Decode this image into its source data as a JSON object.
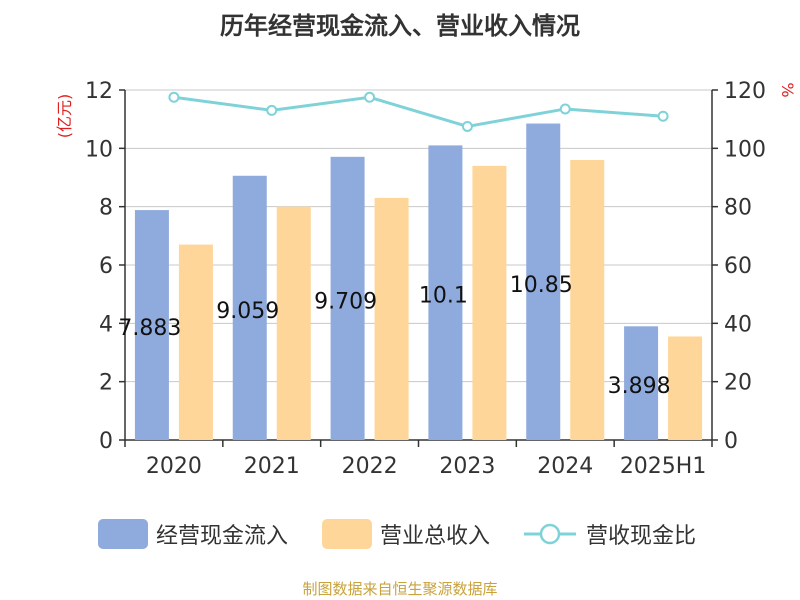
{
  "title": "历年经营现金流入、营业收入情况",
  "source": "制图数据来自恒生聚源数据库",
  "colors": {
    "cash": "#8faadc",
    "revenue": "#ffd699",
    "ratio": "#7fd3d8",
    "axis_unit": "#e02020",
    "text": "#333333",
    "grid": "#c8c8c8"
  },
  "chart_data": {
    "type": "bar",
    "categories": [
      "2020",
      "2021",
      "2022",
      "2023",
      "2024",
      "2025H1"
    ],
    "series": [
      {
        "name": "经营现金流入",
        "type": "bar",
        "axis": "left",
        "values": [
          7.883,
          9.059,
          9.709,
          10.1,
          10.85,
          3.898
        ],
        "labels": [
          "7.883",
          "9.059",
          "9.709",
          "10.1",
          "10.85",
          "3.898"
        ]
      },
      {
        "name": "营业总收入",
        "type": "bar",
        "axis": "left",
        "values": [
          6.7,
          8.0,
          8.3,
          9.4,
          9.6,
          3.55
        ]
      },
      {
        "name": "营收现金比",
        "type": "line",
        "axis": "right",
        "values": [
          117.5,
          113,
          117.5,
          107.5,
          113.5,
          111
        ]
      }
    ],
    "left_axis": {
      "label": "(亿元)",
      "ylim": [
        0,
        12
      ],
      "ticks": [
        "0",
        "2",
        "4",
        "6",
        "8",
        "10",
        "12"
      ]
    },
    "right_axis": {
      "label": "%",
      "ylim": [
        0,
        120
      ],
      "ticks": [
        "0",
        "20",
        "40",
        "60",
        "80",
        "100",
        "120"
      ]
    },
    "grid": true,
    "legend_position": "bottom"
  }
}
